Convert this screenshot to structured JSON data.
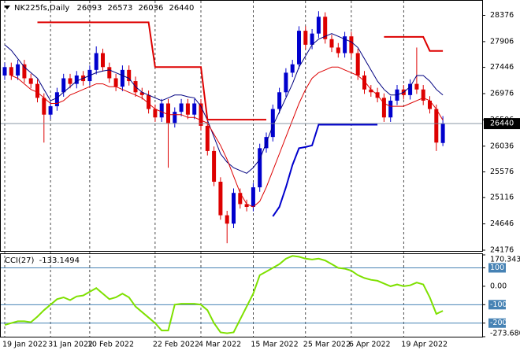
{
  "chart_data": [
    {
      "type": "candlestick",
      "title": "NK225fs,Daily",
      "categories": [
        "19 Jan 2022",
        null,
        null,
        null,
        null,
        null,
        null,
        "31 Jan 2022",
        null,
        null,
        null,
        null,
        null,
        "10 Feb 2022",
        null,
        null,
        null,
        null,
        null,
        null,
        null,
        null,
        null,
        "22 Feb 2022",
        null,
        null,
        null,
        null,
        null,
        null,
        "4 Mar 2022",
        null,
        null,
        null,
        null,
        null,
        null,
        null,
        "15 Mar 2022",
        null,
        null,
        null,
        null,
        null,
        null,
        null,
        "25 Mar 2022",
        null,
        null,
        null,
        null,
        null,
        null,
        "6 Apr 2022",
        null,
        null,
        null,
        null,
        null,
        null,
        null,
        "19 Apr 2022",
        null,
        null,
        null,
        null,
        null,
        null
      ],
      "open": [
        27300,
        27450,
        27300,
        27500,
        27250,
        27150,
        26900,
        26600,
        26750,
        27000,
        27250,
        27150,
        27300,
        27200,
        27400,
        27700,
        27450,
        27250,
        27100,
        27400,
        27200,
        27000,
        26950,
        26700,
        26550,
        26800,
        26450,
        26650,
        26800,
        26600,
        26800,
        26400,
        25950,
        25400,
        24800,
        24650,
        25200,
        25000,
        24950,
        25300,
        26000,
        26200,
        26700,
        27000,
        27350,
        27500,
        28100,
        27850,
        28050,
        28350,
        27950,
        27800,
        27700,
        28000,
        27700,
        27300,
        27050,
        27000,
        26900,
        26550,
        26850,
        27050,
        26950,
        27150,
        27050,
        26850,
        26700,
        26093
      ],
      "high": [
        27530,
        27530,
        27580,
        27580,
        27330,
        27230,
        26980,
        26830,
        27080,
        27330,
        27330,
        27380,
        27380,
        27480,
        27820,
        27780,
        27530,
        27330,
        27480,
        27480,
        27280,
        27080,
        27030,
        26780,
        26880,
        26880,
        26730,
        26880,
        26880,
        26880,
        26880,
        26480,
        26030,
        25480,
        24880,
        25280,
        25280,
        25080,
        25380,
        26080,
        26280,
        26780,
        27080,
        27430,
        27580,
        28180,
        28180,
        28130,
        28450,
        28430,
        28030,
        27880,
        28080,
        28080,
        27780,
        27380,
        27130,
        27080,
        26980,
        26930,
        27130,
        27130,
        27230,
        27800,
        27130,
        26930,
        26780,
        26573
      ],
      "low": [
        27220,
        27220,
        27220,
        27170,
        27070,
        26820,
        26100,
        26520,
        26670,
        26920,
        27070,
        27070,
        27120,
        27120,
        27320,
        27370,
        27170,
        27020,
        27020,
        27120,
        26920,
        26870,
        26620,
        26470,
        26470,
        25650,
        26370,
        26570,
        26520,
        26520,
        26320,
        25870,
        25320,
        24720,
        24300,
        24570,
        24920,
        24870,
        24870,
        25220,
        25920,
        26120,
        26620,
        26920,
        27270,
        27420,
        27770,
        27770,
        27970,
        27870,
        27720,
        27620,
        27620,
        27620,
        27220,
        26970,
        26920,
        26820,
        26470,
        26470,
        26770,
        26870,
        26870,
        26970,
        26770,
        26620,
        25950,
        26036
      ],
      "close": [
        27450,
        27300,
        27500,
        27250,
        27150,
        26900,
        26600,
        26750,
        27000,
        27250,
        27150,
        27300,
        27200,
        27400,
        27700,
        27450,
        27250,
        27100,
        27400,
        27200,
        27000,
        26950,
        26700,
        26550,
        26800,
        26450,
        26650,
        26800,
        26600,
        26800,
        26400,
        25950,
        25400,
        24800,
        24650,
        25200,
        25000,
        24950,
        25300,
        26000,
        26200,
        26700,
        27000,
        27350,
        27500,
        28100,
        27850,
        28050,
        28350,
        27950,
        27800,
        27700,
        28000,
        27700,
        27300,
        27050,
        27000,
        26900,
        26550,
        26850,
        27050,
        26950,
        27150,
        27050,
        26850,
        26700,
        26100,
        26440
      ],
      "up_color": "#0000cd",
      "down_color": "#dd0000",
      "series": [
        {
          "color": "#000080",
          "values": [
            27850,
            27750,
            27600,
            27450,
            27350,
            27250,
            27050,
            26850,
            26900,
            27000,
            27100,
            27200,
            27250,
            27300,
            27350,
            27380,
            27400,
            27350,
            27300,
            27250,
            27100,
            27000,
            26950,
            26900,
            26850,
            26900,
            26950,
            26950,
            26920,
            26900,
            26750,
            26500,
            26200,
            25900,
            25750,
            25650,
            25600,
            25550,
            25650,
            25800,
            26100,
            26400,
            26650,
            26900,
            27150,
            27450,
            27650,
            27850,
            27950,
            28000,
            28050,
            28000,
            27950,
            27900,
            27800,
            27600,
            27400,
            27200,
            27050,
            26950,
            26950,
            27000,
            27100,
            27300,
            27300,
            27200,
            27050,
            26950
          ]
        },
        {
          "color": "#dd0000",
          "values": [
            null,
            27300,
            27250,
            27150,
            27050,
            27000,
            26900,
            26800,
            26800,
            26850,
            26950,
            27000,
            27050,
            27100,
            27150,
            27150,
            27100,
            27100,
            27050,
            27000,
            26950,
            26900,
            26800,
            26700,
            26650,
            26600,
            26600,
            26600,
            26550,
            26550,
            26500,
            26450,
            26250,
            26050,
            25800,
            25500,
            25200,
            25000,
            24950,
            25050,
            25300,
            25600,
            25900,
            26200,
            26500,
            26800,
            27050,
            27250,
            27350,
            27400,
            27450,
            27450,
            27400,
            27350,
            27300,
            27200,
            27050,
            26950,
            26800,
            26750,
            26750,
            26750,
            26800,
            26850,
            26900,
            26850,
            26700,
            26500
          ]
        },
        {
          "color": "#dd0000",
          "width": 2,
          "values": [
            null,
            null,
            null,
            null,
            null,
            28250,
            28250,
            28250,
            28250,
            28250,
            28250,
            28250,
            28250,
            28250,
            28250,
            28250,
            28250,
            28250,
            28250,
            28250,
            28250,
            28250,
            28250,
            27450,
            27450,
            27450,
            27450,
            27450,
            27450,
            27450,
            27450,
            26510,
            26510,
            26510,
            26510,
            26510,
            26510,
            26510,
            26510,
            26510,
            26510,
            null,
            null,
            null,
            null,
            null,
            null,
            null,
            null,
            null,
            null,
            null,
            null,
            null,
            null,
            null,
            null,
            null,
            27990,
            27990,
            27990,
            27990,
            27990,
            27990,
            27990,
            27740,
            27740,
            27740
          ]
        },
        {
          "color": "#0000cd",
          "width": 2,
          "values": [
            null,
            null,
            null,
            null,
            null,
            null,
            null,
            null,
            null,
            null,
            null,
            null,
            null,
            null,
            null,
            null,
            null,
            null,
            null,
            null,
            null,
            null,
            null,
            null,
            null,
            null,
            null,
            null,
            null,
            null,
            null,
            null,
            null,
            null,
            null,
            null,
            null,
            null,
            null,
            null,
            null,
            24780,
            24950,
            25300,
            25700,
            26000,
            26020,
            26050,
            26420,
            26420,
            26420,
            26420,
            26420,
            26420,
            26420,
            26420,
            26420,
            26420,
            null,
            null,
            null,
            null,
            null,
            null,
            null,
            null,
            null,
            null
          ]
        }
      ],
      "ylim": [
        24176,
        28622
      ],
      "yticks": [
        24176,
        24646,
        25116,
        25576,
        26036,
        26506,
        26976,
        27446,
        27906,
        28376
      ],
      "grid": true
    },
    {
      "type": "line",
      "title": "CCI(27)",
      "series": [
        {
          "color": "#7ee000",
          "values": [
            -210,
            -200,
            -190,
            -190,
            -195,
            -165,
            -130,
            -100,
            -70,
            -60,
            -75,
            -55,
            -50,
            -30,
            -10,
            -40,
            -70,
            -60,
            -40,
            -60,
            -110,
            -140,
            -170,
            -200,
            -240,
            -240,
            -100,
            -95,
            -95,
            -95,
            -100,
            -130,
            -200,
            -250,
            -255,
            -250,
            -180,
            -110,
            -40,
            60,
            80,
            100,
            120,
            150,
            165,
            160,
            150,
            145,
            150,
            140,
            120,
            100,
            95,
            85,
            60,
            45,
            35,
            30,
            15,
            0,
            10,
            0,
            5,
            20,
            10,
            -60,
            -150,
            -133.1494
          ]
        }
      ],
      "ylim": [
        -273.68,
        170.3435
      ],
      "yticks": [
        {
          "value": -273.68,
          "label": "-273.6800"
        },
        -200,
        -100,
        {
          "value": 0,
          "label": "0.00"
        },
        100,
        170.3435
      ],
      "levels": [
        100,
        -100,
        -200
      ],
      "level_color": "#4682b4"
    }
  ]
}
